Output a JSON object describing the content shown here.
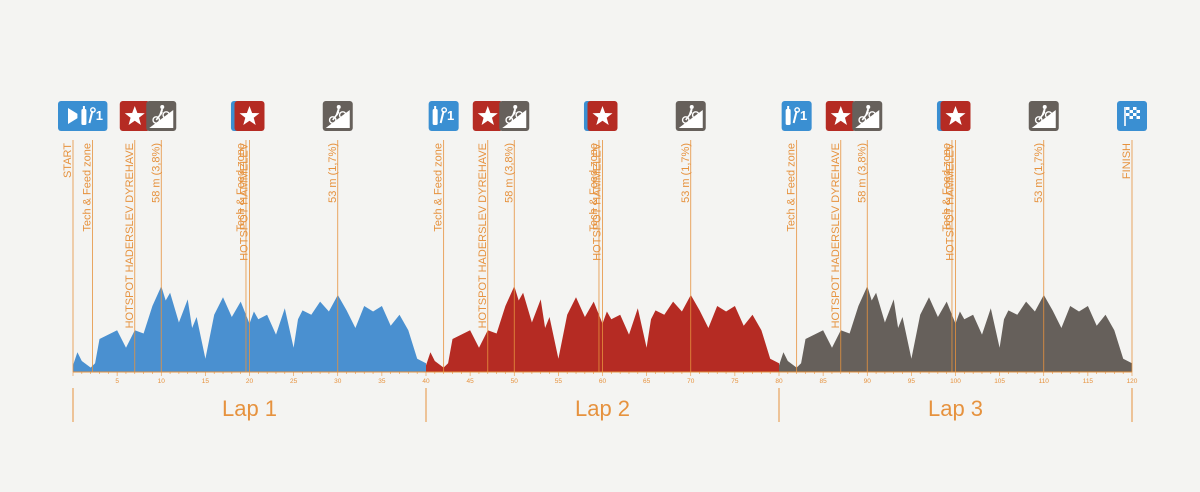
{
  "chart_data": {
    "type": "area",
    "xlim": [
      0,
      120
    ],
    "x_ticks": [
      5,
      10,
      15,
      20,
      25,
      30,
      35,
      40,
      45,
      50,
      55,
      60,
      65,
      70,
      75,
      80,
      85,
      90,
      95,
      100,
      105,
      110,
      115,
      120
    ],
    "profile": {
      "x": [
        0,
        0.5,
        1,
        2,
        2.5,
        3,
        4,
        5,
        6,
        6.5,
        7,
        8,
        9,
        10,
        10.5,
        11,
        12,
        13,
        13.5,
        14,
        15,
        16,
        17,
        18,
        19,
        20,
        20.5,
        21,
        22,
        23,
        24,
        25,
        25.5,
        26,
        27,
        28,
        29,
        30,
        31,
        32,
        33,
        34,
        35,
        36,
        37,
        38,
        39,
        40
      ],
      "y": [
        6,
        18,
        10,
        4,
        8,
        30,
        34,
        38,
        22,
        30,
        38,
        35,
        60,
        78,
        65,
        72,
        45,
        66,
        40,
        50,
        12,
        52,
        68,
        50,
        64,
        44,
        55,
        48,
        52,
        34,
        58,
        22,
        48,
        56,
        52,
        64,
        55,
        70,
        56,
        40,
        60,
        55,
        60,
        42,
        52,
        38,
        12,
        8
      ]
    },
    "laps": [
      {
        "name": "Lap 1",
        "from": 0,
        "to": 40,
        "color": "#4a90d0"
      },
      {
        "name": "Lap 2",
        "from": 40,
        "to": 80,
        "color": "#b52b23"
      },
      {
        "name": "Lap 3",
        "from": 80,
        "to": 120,
        "color": "#66605b"
      }
    ],
    "markers": [
      {
        "x": 0,
        "label": "START",
        "icon": "start-icon",
        "color": "#3a8fd2"
      },
      {
        "x": 2.2,
        "label": "Tech & Feed zone",
        "icon": "tech-feed-1-icon",
        "num": "1",
        "color": "#3a8fd2"
      },
      {
        "x": 7,
        "label": "HOTSPOT HADERSLEV DYREHAVE",
        "icon": "hotspot-star-icon",
        "color": "#b52b23"
      },
      {
        "x": 10,
        "label": "58 m (3,8%)",
        "icon": "climb-icon",
        "color": "#66605b"
      },
      {
        "x": 19.6,
        "label": "Tech & Feed zone",
        "icon": "tech-feed-2-icon",
        "num": "2",
        "color": "#3a8fd2"
      },
      {
        "x": 20,
        "label": "HOTSPOT HAMMELEV",
        "icon": "hotspot-star-icon",
        "color": "#b52b23"
      },
      {
        "x": 30,
        "label": "53 m (1,7%)",
        "icon": "climb-icon",
        "color": "#66605b"
      },
      {
        "x": 42,
        "label": "Tech & Feed zone",
        "icon": "tech-feed-1-icon",
        "num": "1",
        "color": "#3a8fd2"
      },
      {
        "x": 47,
        "label": "HOTSPOT HADERSLEV DYREHAVE",
        "icon": "hotspot-star-icon",
        "color": "#b52b23"
      },
      {
        "x": 50,
        "label": "58 m (3,8%)",
        "icon": "climb-icon",
        "color": "#66605b"
      },
      {
        "x": 59.6,
        "label": "Tech & Feed zone",
        "icon": "tech-feed-2-icon",
        "num": "2",
        "color": "#3a8fd2"
      },
      {
        "x": 60,
        "label": "HOTSPOT HAMMELEV",
        "icon": "hotspot-star-icon",
        "color": "#b52b23"
      },
      {
        "x": 70,
        "label": "53 m (1,7%)",
        "icon": "climb-icon",
        "color": "#66605b"
      },
      {
        "x": 82,
        "label": "Tech & Feed zone",
        "icon": "tech-feed-1-icon",
        "num": "1",
        "color": "#3a8fd2"
      },
      {
        "x": 87,
        "label": "HOTSPOT HADERSLEV DYREHAVE",
        "icon": "hotspot-star-icon",
        "color": "#b52b23"
      },
      {
        "x": 90,
        "label": "58 m (3,8%)",
        "icon": "climb-icon",
        "color": "#66605b"
      },
      {
        "x": 99.6,
        "label": "Tech & Feed zone",
        "icon": "tech-feed-2-icon",
        "num": "2",
        "color": "#3a8fd2"
      },
      {
        "x": 100,
        "label": "HOTSPOT HAMMELEV",
        "icon": "hotspot-star-icon",
        "color": "#b52b23"
      },
      {
        "x": 110,
        "label": "53 m (1,7%)",
        "icon": "climb-icon",
        "color": "#66605b"
      },
      {
        "x": 120,
        "label": "FINISH",
        "icon": "finish-flag-icon",
        "color": "#3a8fd2"
      }
    ],
    "accent_color": "#e6923e"
  }
}
